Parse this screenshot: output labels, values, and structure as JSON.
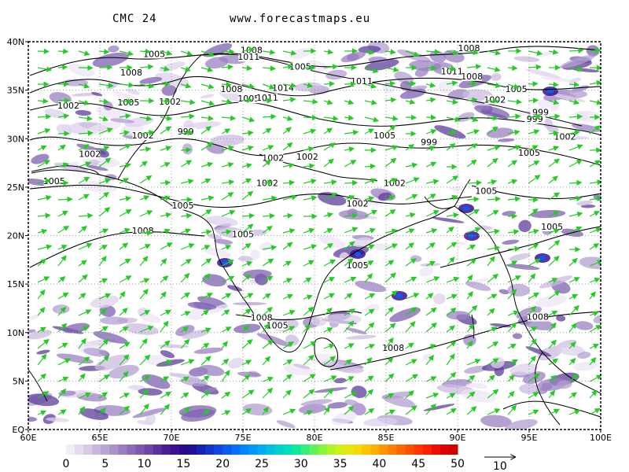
{
  "header": {
    "model": "CMC 24",
    "site": "www.forecastmaps.eu"
  },
  "map": {
    "lon_range": [
      60,
      100
    ],
    "lat_range": [
      0,
      40
    ],
    "lon_ticks": [
      "60E",
      "65E",
      "70E",
      "75E",
      "80E",
      "85E",
      "90E",
      "95E",
      "100E"
    ],
    "lat_ticks": [
      "EQ",
      "5N",
      "10N",
      "15N",
      "20N",
      "25N",
      "30N",
      "35N",
      "40N"
    ],
    "isobar_labels": [
      {
        "text": "1008",
        "lon": 75.6,
        "lat": 38.9
      },
      {
        "text": "1011",
        "lon": 75.4,
        "lat": 38.2
      },
      {
        "text": "1005",
        "lon": 68.8,
        "lat": 38.5
      },
      {
        "text": "1008",
        "lon": 67.2,
        "lat": 36.6
      },
      {
        "text": "1005",
        "lon": 79.0,
        "lat": 37.2
      },
      {
        "text": "1011",
        "lon": 83.3,
        "lat": 35.7
      },
      {
        "text": "1008",
        "lon": 74.2,
        "lat": 34.9
      },
      {
        "text": "1014",
        "lon": 77.8,
        "lat": 35.0
      },
      {
        "text": "1005",
        "lon": 75.4,
        "lat": 33.9
      },
      {
        "text": "1011",
        "lon": 76.7,
        "lat": 34.0
      },
      {
        "text": "1005",
        "lon": 67.0,
        "lat": 33.5
      },
      {
        "text": "1002",
        "lon": 69.9,
        "lat": 33.6
      },
      {
        "text": "1002",
        "lon": 62.8,
        "lat": 33.2
      },
      {
        "text": "999",
        "lon": 71.0,
        "lat": 30.5
      },
      {
        "text": "1002",
        "lon": 68.0,
        "lat": 30.1
      },
      {
        "text": "1002",
        "lon": 64.3,
        "lat": 28.2
      },
      {
        "text": "1005",
        "lon": 61.8,
        "lat": 25.4
      },
      {
        "text": "1002",
        "lon": 77.1,
        "lat": 27.8
      },
      {
        "text": "1002",
        "lon": 79.5,
        "lat": 27.9
      },
      {
        "text": "1002",
        "lon": 76.7,
        "lat": 25.2
      },
      {
        "text": "1005",
        "lon": 84.9,
        "lat": 30.1
      },
      {
        "text": "999",
        "lon": 88.0,
        "lat": 29.4
      },
      {
        "text": "1002",
        "lon": 85.6,
        "lat": 25.2
      },
      {
        "text": "1002",
        "lon": 83.0,
        "lat": 23.1
      },
      {
        "text": "1005",
        "lon": 70.8,
        "lat": 22.9
      },
      {
        "text": "1008",
        "lon": 68.0,
        "lat": 20.3
      },
      {
        "text": "1005",
        "lon": 75.0,
        "lat": 19.9
      },
      {
        "text": "1005",
        "lon": 83.0,
        "lat": 16.7
      },
      {
        "text": "1008",
        "lon": 90.8,
        "lat": 39.1
      },
      {
        "text": "1011",
        "lon": 89.6,
        "lat": 36.7
      },
      {
        "text": "1008",
        "lon": 91.0,
        "lat": 36.2
      },
      {
        "text": "1005",
        "lon": 94.1,
        "lat": 34.9
      },
      {
        "text": "1002",
        "lon": 92.6,
        "lat": 33.8
      },
      {
        "text": "999",
        "lon": 95.8,
        "lat": 32.5
      },
      {
        "text": "999",
        "lon": 95.4,
        "lat": 31.8
      },
      {
        "text": "1002",
        "lon": 97.5,
        "lat": 30.0
      },
      {
        "text": "1005",
        "lon": 95.0,
        "lat": 28.3
      },
      {
        "text": "1005",
        "lon": 92.0,
        "lat": 24.4
      },
      {
        "text": "1005",
        "lon": 96.6,
        "lat": 20.7
      },
      {
        "text": "1008",
        "lon": 76.3,
        "lat": 11.3
      },
      {
        "text": "1005",
        "lon": 77.4,
        "lat": 10.5
      },
      {
        "text": "1008",
        "lon": 85.5,
        "lat": 8.2
      },
      {
        "text": "1008",
        "lon": 95.6,
        "lat": 11.4
      }
    ]
  },
  "colorbar": {
    "colors": [
      "#f2eef7",
      "#e4dcee",
      "#d6cae5",
      "#c7b7dc",
      "#b9a4d3",
      "#aa91ca",
      "#9b7ec1",
      "#8c6bb8",
      "#7d58af",
      "#6e45a6",
      "#5b2f9e",
      "#4a1f96",
      "#3a1290",
      "#2b0a8c",
      "#1f1096",
      "#1822b0",
      "#1335c8",
      "#0e48de",
      "#0a5cf0",
      "#0670f8",
      "#0284fa",
      "#0098f5",
      "#00aced",
      "#00bfe2",
      "#00d1d0",
      "#00dfb8",
      "#10e89a",
      "#38ee78",
      "#60f258",
      "#88f43c",
      "#b0f428",
      "#d0f01a",
      "#e8e610",
      "#f8d808",
      "#ffc400",
      "#ffae00",
      "#ff9600",
      "#ff7e00",
      "#ff6600",
      "#ff4e00",
      "#ff3600",
      "#fa2000",
      "#f00c00",
      "#e00000",
      "#d00000"
    ],
    "labels": [
      "0",
      "5",
      "10",
      "15",
      "20",
      "25",
      "30",
      "35",
      "40",
      "45",
      "50"
    ]
  },
  "wind_legend": {
    "label": "10"
  },
  "colors": {
    "wind": "#22cc22",
    "isobar": "#000000",
    "border": "#000000"
  }
}
